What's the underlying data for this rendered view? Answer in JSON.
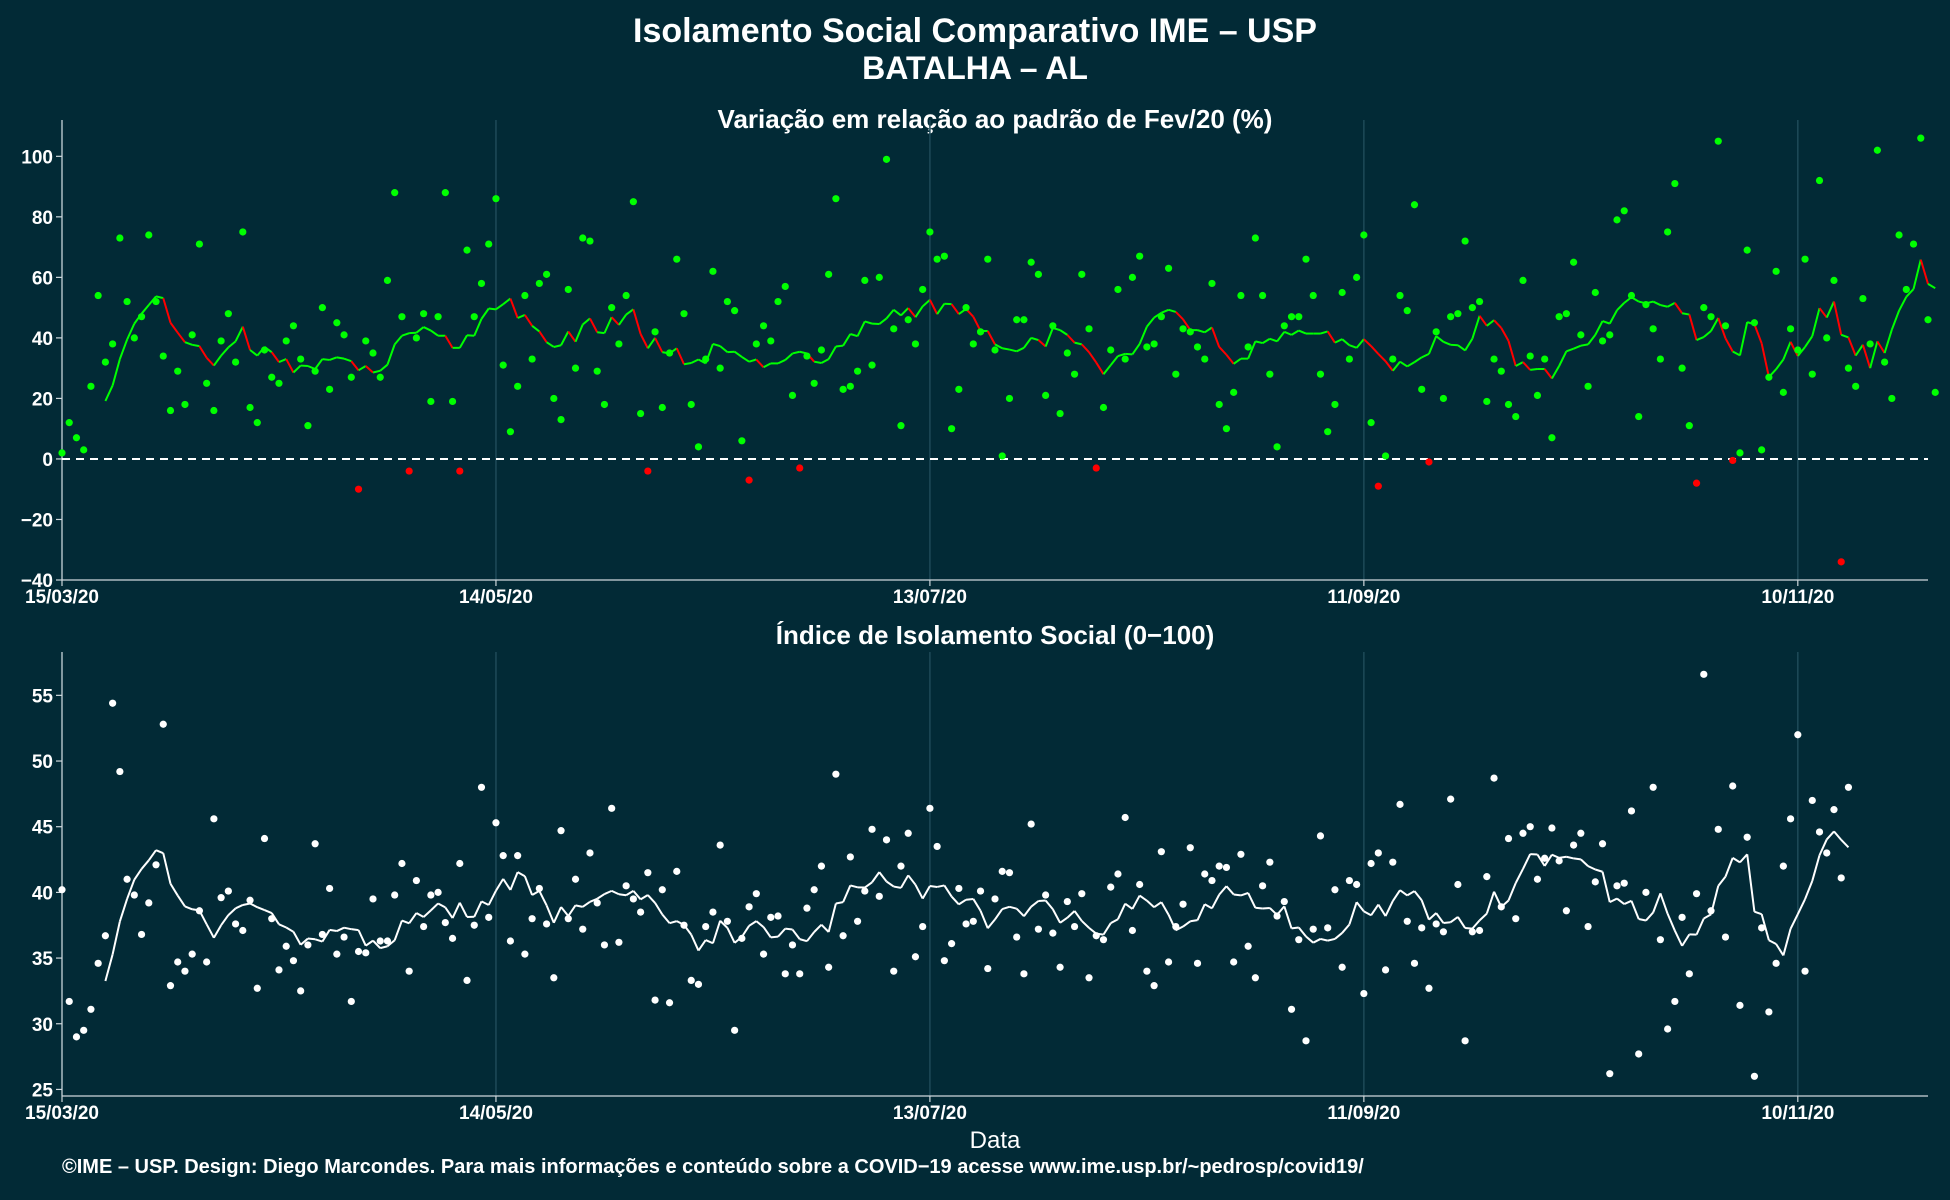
{
  "title": "Isolamento Social Comparativo IME – USP",
  "subtitle": "BATALHA – AL",
  "footer": "©IME – USP. Design: Diego Marcondes. Para mais informações e conteúdo sobre a COVID−19 acesse www.ime.usp.br/~pedrosp/covid19/",
  "colors": {
    "background": "#022a36",
    "positive": "#00ff00",
    "negative": "#ff0000",
    "index": "#ffffff",
    "reference_line": "#ffffff",
    "grid": "#1e4a58",
    "axis": "#cfd8dc"
  },
  "chart_data": [
    {
      "type": "scatter",
      "title": "Variação em relação ao padrão de Fev/20 (%)",
      "xlabel": "",
      "x_ticks": [
        "15/03/20",
        "14/05/20",
        "13/07/20",
        "11/09/20",
        "10/11/20"
      ],
      "x_tick_days": [
        0,
        60,
        120,
        180,
        240
      ],
      "x_range_days": [
        0,
        258
      ],
      "ylim": [
        -40,
        112
      ],
      "y_ticks": [
        -40,
        -20,
        0,
        20,
        40,
        60,
        80,
        100
      ],
      "reference_line": 0,
      "moving_average_window": 7,
      "series": [
        {
          "values": [
            2,
            12,
            7,
            3,
            24,
            54,
            32,
            38,
            73,
            52,
            40,
            47,
            74,
            52,
            34,
            16,
            29,
            18,
            41,
            71,
            25,
            16,
            39,
            48,
            32,
            75,
            17,
            12,
            36,
            27,
            25,
            39,
            44,
            33,
            11,
            29,
            50,
            23,
            45,
            41,
            27,
            -10,
            39,
            35,
            27,
            59,
            88,
            47,
            -4,
            40,
            48,
            19,
            47,
            88,
            19,
            -4,
            69,
            47,
            58,
            71,
            86,
            31,
            9,
            24,
            54,
            33,
            58,
            61,
            20,
            13,
            56,
            30,
            73,
            72,
            29,
            18,
            50,
            38,
            54,
            85,
            15,
            -4,
            42,
            17,
            35,
            66,
            48,
            18,
            4,
            33,
            62,
            30,
            52,
            49,
            6,
            -7,
            38,
            44,
            39,
            52,
            57,
            21,
            -3,
            34,
            25,
            36,
            61,
            86,
            23,
            24,
            29,
            59,
            31,
            60,
            99,
            43,
            11,
            46,
            38,
            56,
            75,
            66,
            67,
            10,
            23,
            50,
            38,
            42,
            66,
            36,
            1,
            20,
            46,
            46,
            65,
            61,
            21,
            44,
            15,
            35,
            28,
            61,
            43,
            -3,
            17,
            36,
            56,
            33,
            60,
            67,
            37,
            38,
            47,
            63,
            28,
            43,
            42,
            37,
            33,
            58,
            18,
            10,
            22,
            54,
            37,
            73,
            54,
            28,
            4,
            44,
            47,
            47,
            66,
            54,
            28,
            9,
            18,
            55,
            33,
            60,
            74,
            12,
            -9,
            1,
            33,
            54,
            49,
            84,
            23,
            -1,
            42,
            20,
            47,
            48,
            72,
            50,
            52,
            19,
            33,
            29,
            18,
            14,
            59,
            34,
            21,
            33,
            7,
            47,
            48,
            65,
            41,
            24,
            55,
            39,
            41,
            79,
            82,
            54,
            14,
            51,
            43,
            33,
            75,
            91,
            30,
            11,
            -8,
            50,
            47,
            105,
            44,
            -0.5,
            2,
            69,
            45,
            3,
            27,
            62,
            22,
            43,
            36,
            66,
            28,
            92,
            40,
            59,
            -34,
            30,
            24,
            53,
            38,
            102,
            32,
            20,
            74,
            56,
            71,
            106,
            46,
            22
          ]
        }
      ]
    },
    {
      "type": "scatter",
      "title": "Índice de Isolamento Social (0−100)",
      "xlabel": "Data",
      "x_ticks": [
        "15/03/20",
        "14/05/20",
        "13/07/20",
        "11/09/20",
        "10/11/20"
      ],
      "x_tick_days": [
        0,
        60,
        120,
        180,
        240
      ],
      "x_range_days": [
        0,
        258
      ],
      "ylim": [
        24.5,
        58.3
      ],
      "y_ticks": [
        25,
        30,
        35,
        40,
        45,
        50,
        55
      ],
      "moving_average_window": 7,
      "series": [
        {
          "values": [
            40.2,
            31.7,
            29.0,
            29.5,
            31.1,
            34.6,
            36.7,
            54.4,
            49.2,
            41.0,
            39.8,
            36.8,
            39.2,
            42.1,
            52.8,
            32.9,
            34.7,
            34.0,
            35.3,
            38.6,
            34.7,
            45.6,
            39.6,
            40.1,
            37.6,
            37.1,
            39.4,
            32.7,
            44.1,
            38.0,
            34.1,
            35.9,
            34.8,
            32.5,
            36.0,
            43.7,
            36.8,
            40.3,
            35.3,
            36.6,
            31.7,
            35.5,
            35.4,
            39.5,
            36.3,
            36.3,
            39.8,
            42.2,
            34.0,
            40.9,
            37.4,
            39.8,
            40.0,
            37.7,
            36.5,
            42.2,
            33.3,
            37.5,
            48.0,
            38.1,
            45.3,
            42.8,
            36.3,
            42.8,
            35.3,
            38.0,
            40.3,
            37.6,
            33.5,
            44.7,
            38.0,
            41.0,
            37.2,
            43.0,
            39.2,
            36.0,
            46.4,
            36.2,
            40.5,
            39.5,
            38.5,
            41.5,
            31.8,
            40.2,
            31.6,
            41.6,
            37.5,
            33.3,
            33.0,
            37.4,
            38.5,
            43.6,
            37.8,
            29.5,
            36.5,
            38.9,
            39.9,
            35.3,
            38.1,
            38.2,
            33.8,
            36.0,
            33.8,
            38.8,
            40.2,
            42.0,
            34.3,
            49.0,
            36.7,
            42.7,
            37.8,
            40.1,
            44.8,
            39.7,
            44.0,
            34.0,
            42.0,
            44.5,
            35.1,
            37.4,
            46.4,
            43.5,
            34.8,
            36.1,
            40.3,
            37.6,
            37.8,
            40.1,
            34.2,
            39.5,
            41.6,
            41.5,
            36.6,
            33.8,
            45.2,
            37.2,
            39.8,
            36.9,
            34.3,
            39.3,
            37.4,
            39.9,
            33.5,
            36.7,
            36.4,
            40.4,
            41.4,
            45.7,
            37.1,
            40.6,
            34.0,
            32.9,
            43.1,
            34.7,
            37.4,
            39.1,
            43.4,
            34.6,
            41.4,
            40.9,
            42.0,
            41.9,
            34.7,
            42.9,
            35.9,
            33.5,
            40.5,
            42.3,
            38.2,
            39.3,
            31.1,
            36.4,
            28.7,
            37.2,
            44.3,
            37.3,
            40.2,
            34.3,
            40.9,
            40.6,
            32.3,
            42.2,
            43.0,
            34.1,
            42.3,
            46.7,
            37.8,
            34.6,
            37.3,
            32.7,
            37.6,
            37.0,
            47.1,
            40.6,
            28.7,
            37.0,
            37.1,
            41.2,
            48.7,
            38.9,
            44.1,
            38.0,
            44.5,
            45.0,
            41.0,
            42.6,
            44.9,
            42.4,
            38.6,
            43.6,
            44.5,
            37.4,
            40.8,
            43.7,
            26.2,
            40.5,
            40.7,
            46.2,
            27.7,
            40.0,
            48.0,
            36.4,
            29.6,
            31.7,
            38.1,
            33.8,
            39.9,
            56.6,
            38.6,
            44.8,
            36.6,
            48.1,
            31.4,
            44.2,
            26.0,
            37.3,
            30.9,
            34.6,
            42.0,
            45.6,
            52.0,
            34.0,
            47.0,
            44.6,
            43.0,
            46.3,
            41.1,
            48.0
          ]
        }
      ]
    }
  ]
}
